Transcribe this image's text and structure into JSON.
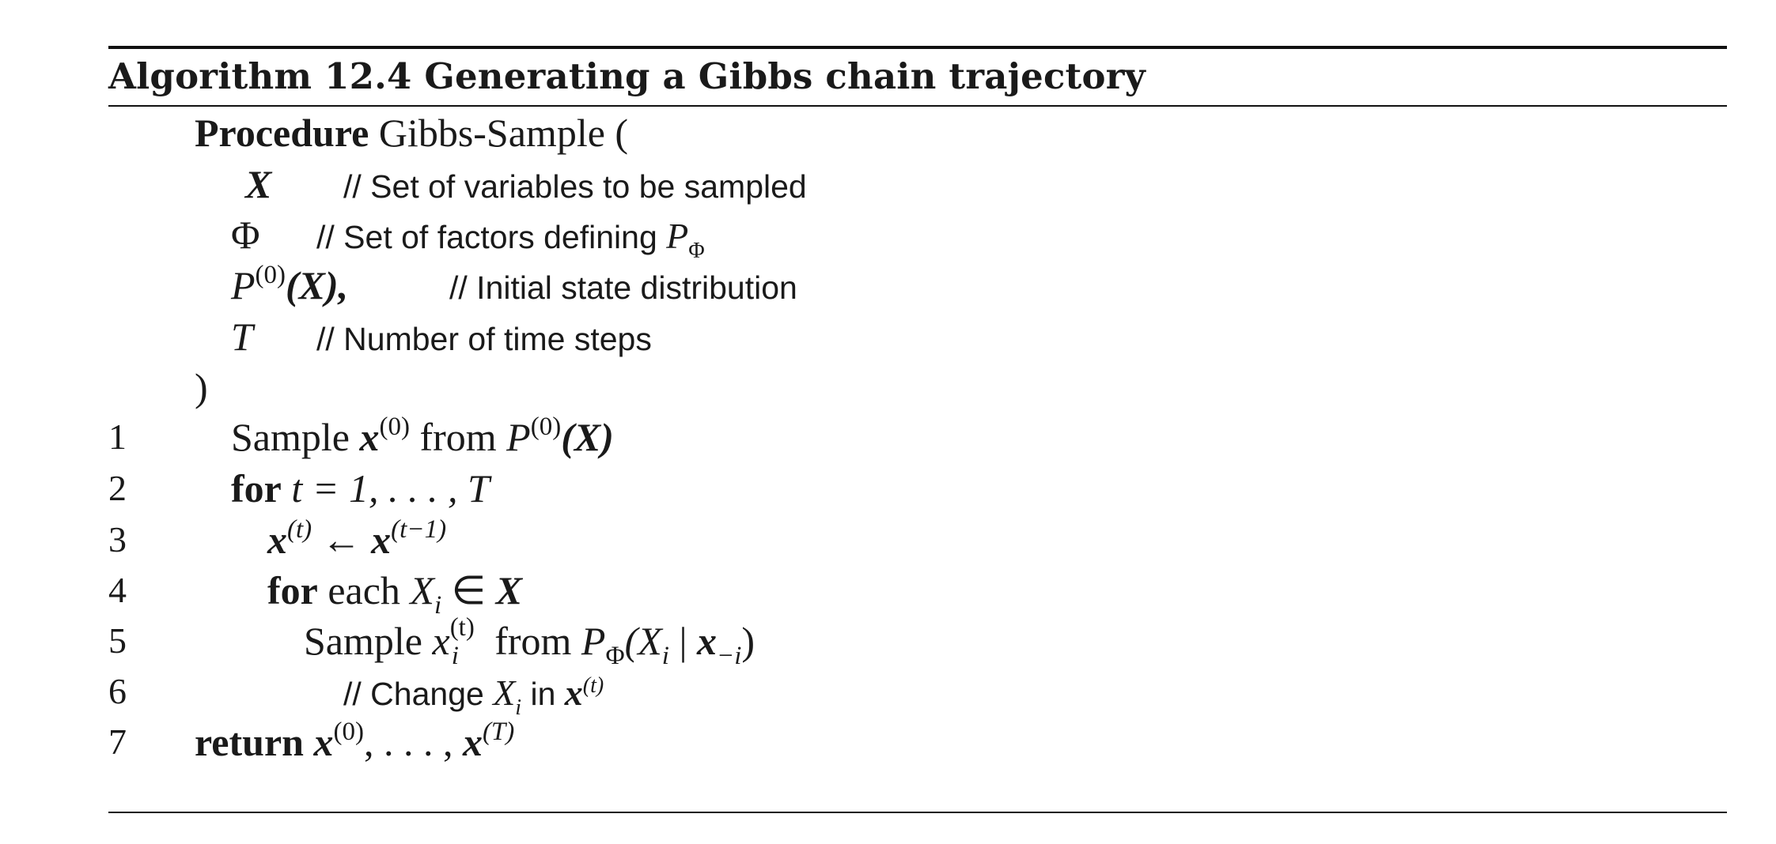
{
  "algorithm": {
    "title": "Algorithm 12.4 Generating a Gibbs chain trajectory",
    "header": {
      "keyword": "Procedure",
      "name": "Gibbs-Sample (",
      "close_paren": ")"
    },
    "params": [
      {
        "symbol": "X",
        "comment": "// Set of variables to be sampled"
      },
      {
        "symbol": "Φ",
        "comment_prefix": "// Set of factors defining ",
        "comment_sym": "P",
        "comment_sub": "Φ"
      },
      {
        "symbol": "P",
        "sup": "(0)",
        "arg": "(X),",
        "comment": "// Initial state distribution"
      },
      {
        "symbol": "T",
        "comment": "// Number of time steps"
      }
    ],
    "lines": [
      {
        "num": "1",
        "pre": "Sample ",
        "x": "x",
        "x_sup": "(0)",
        "mid": " from ",
        "p": "P",
        "p_sup": "(0)",
        "tail": "(X)"
      },
      {
        "num": "2",
        "kw": "for",
        "expr": "t = 1, . . . , T"
      },
      {
        "num": "3",
        "lhs": "x",
        "lhs_sup": "(t)",
        "arrow": " ← ",
        "rhs": "x",
        "rhs_sup": "(t−1)"
      },
      {
        "num": "4",
        "kw": "for",
        "word": " each ",
        "xi": "X",
        "xi_sub": "i",
        "in": " ∈ ",
        "set": "X"
      },
      {
        "num": "5",
        "pre": "Sample ",
        "x": "x",
        "x_sub": "i",
        "x_sup": "(t)",
        "mid": " from ",
        "p": "P",
        "p_sub": "Φ",
        "arg1": "(X",
        "arg1_sub": "i",
        "bar": " | ",
        "arg2": "x",
        "arg2_sub": "−i",
        "close": ")"
      },
      {
        "num": "6",
        "comment_pre": "// Change ",
        "c_x": "X",
        "c_sub": "i",
        "comment_mid": " in ",
        "c_vec": "x",
        "c_sup": "(t)"
      },
      {
        "num": "7",
        "kw": "return",
        "x1": "x",
        "x1_sup": "(0)",
        "dots": ", . . . , ",
        "x2": "x",
        "x2_sup": "(T)"
      }
    ]
  }
}
